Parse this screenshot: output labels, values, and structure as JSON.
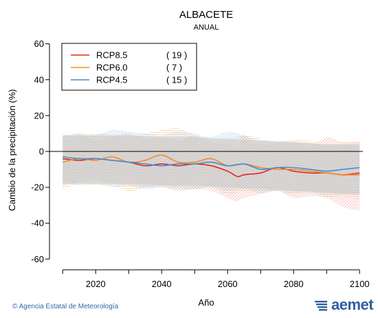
{
  "chart_data": {
    "type": "area",
    "title": "ALBACETE",
    "subtitle": "ANUAL",
    "xlabel": "Año",
    "ylabel": "Cambio de la precipitación (%)",
    "xlim": [
      2006,
      2101
    ],
    "ylim": [
      -66,
      66
    ],
    "xticks": [
      "2020",
      "2040",
      "2060",
      "2080",
      "2100"
    ],
    "xtick_values": [
      2020,
      2040,
      2060,
      2080,
      2100
    ],
    "yticks": [
      "60",
      "40",
      "20",
      "0",
      "-20",
      "-40",
      "-60"
    ],
    "ytick_values": [
      60,
      40,
      20,
      0,
      -20,
      -40,
      -60
    ],
    "grid": false,
    "legend_position": "top-left",
    "series": [
      {
        "name": "RCP8.5",
        "count": "( 19 )",
        "color": "#e8251d",
        "band_color": "#f4a8a8",
        "x": [
          2010,
          2015,
          2020,
          2025,
          2030,
          2035,
          2040,
          2045,
          2050,
          2055,
          2060,
          2063,
          2065,
          2070,
          2075,
          2080,
          2085,
          2090,
          2095,
          2100
        ],
        "y": [
          -4,
          -5,
          -4,
          -5,
          -6,
          -8,
          -7,
          -8,
          -7,
          -8,
          -11,
          -14,
          -13,
          -12,
          -9,
          -11,
          -12,
          -12,
          -13,
          -12
        ],
        "upper": [
          6,
          10,
          6,
          8,
          10,
          7,
          8,
          6,
          9,
          5,
          4,
          3,
          9,
          3,
          5,
          6,
          2,
          8,
          5,
          6
        ],
        "lower": [
          -19,
          -17,
          -16,
          -18,
          -19,
          -20,
          -20,
          -22,
          -21,
          -22,
          -26,
          -28,
          -26,
          -24,
          -22,
          -26,
          -25,
          -26,
          -31,
          -33
        ]
      },
      {
        "name": "RCP6.0",
        "count": "(  7 )",
        "color": "#f58a26",
        "band_color": "#fcc98e",
        "x": [
          2010,
          2015,
          2020,
          2025,
          2030,
          2035,
          2040,
          2045,
          2050,
          2055,
          2060,
          2065,
          2070,
          2075,
          2080,
          2085,
          2090,
          2095,
          2100
        ],
        "y": [
          -6,
          -4,
          -5,
          -3,
          -6,
          -5,
          -2,
          -6,
          -6,
          -4,
          -8,
          -7,
          -9,
          -10,
          -10,
          -11,
          -12,
          -13,
          -13
        ],
        "upper": [
          9,
          8,
          10,
          9,
          7,
          10,
          12,
          13,
          9,
          7,
          7,
          9,
          7,
          5,
          6,
          6,
          4,
          5,
          5
        ],
        "lower": [
          -21,
          -18,
          -19,
          -19,
          -22,
          -20,
          -19,
          -20,
          -21,
          -20,
          -24,
          -22,
          -23,
          -22,
          -24,
          -22,
          -26,
          -25,
          -27
        ]
      },
      {
        "name": "RCP4.5",
        "count": "( 15 )",
        "color": "#3b8fd8",
        "band_color": "#9fd0ea",
        "x": [
          2010,
          2015,
          2020,
          2025,
          2030,
          2035,
          2040,
          2045,
          2050,
          2055,
          2060,
          2065,
          2070,
          2075,
          2080,
          2085,
          2090,
          2095,
          2100
        ],
        "y": [
          -3,
          -4,
          -4,
          -5,
          -6,
          -7,
          -8,
          -7,
          -7,
          -6,
          -8,
          -7,
          -10,
          -9,
          -9,
          -10,
          -11,
          -10,
          -9
        ],
        "upper": [
          9,
          10,
          9,
          12,
          11,
          10,
          9,
          11,
          10,
          8,
          11,
          9,
          6,
          6,
          5,
          5,
          3,
          4,
          4
        ],
        "lower": [
          -17,
          -19,
          -18,
          -20,
          -19,
          -21,
          -20,
          -21,
          -21,
          -20,
          -22,
          -21,
          -23,
          -22,
          -23,
          -23,
          -24,
          -24,
          -23
        ]
      }
    ],
    "grey_band": {
      "color": "#c8c8c8",
      "x": [
        2010,
        2020,
        2030,
        2040,
        2050,
        2060,
        2070,
        2080,
        2090,
        2100
      ],
      "upper": [
        9,
        9,
        9,
        8,
        8,
        7,
        6,
        5,
        4,
        4
      ],
      "lower": [
        -18,
        -18,
        -18,
        -19,
        -19,
        -20,
        -21,
        -22,
        -23,
        -24
      ]
    },
    "zero_line": 0
  },
  "footer": {
    "credit": "© Agencia Estatal de Meteorología",
    "brand": "aemet"
  }
}
